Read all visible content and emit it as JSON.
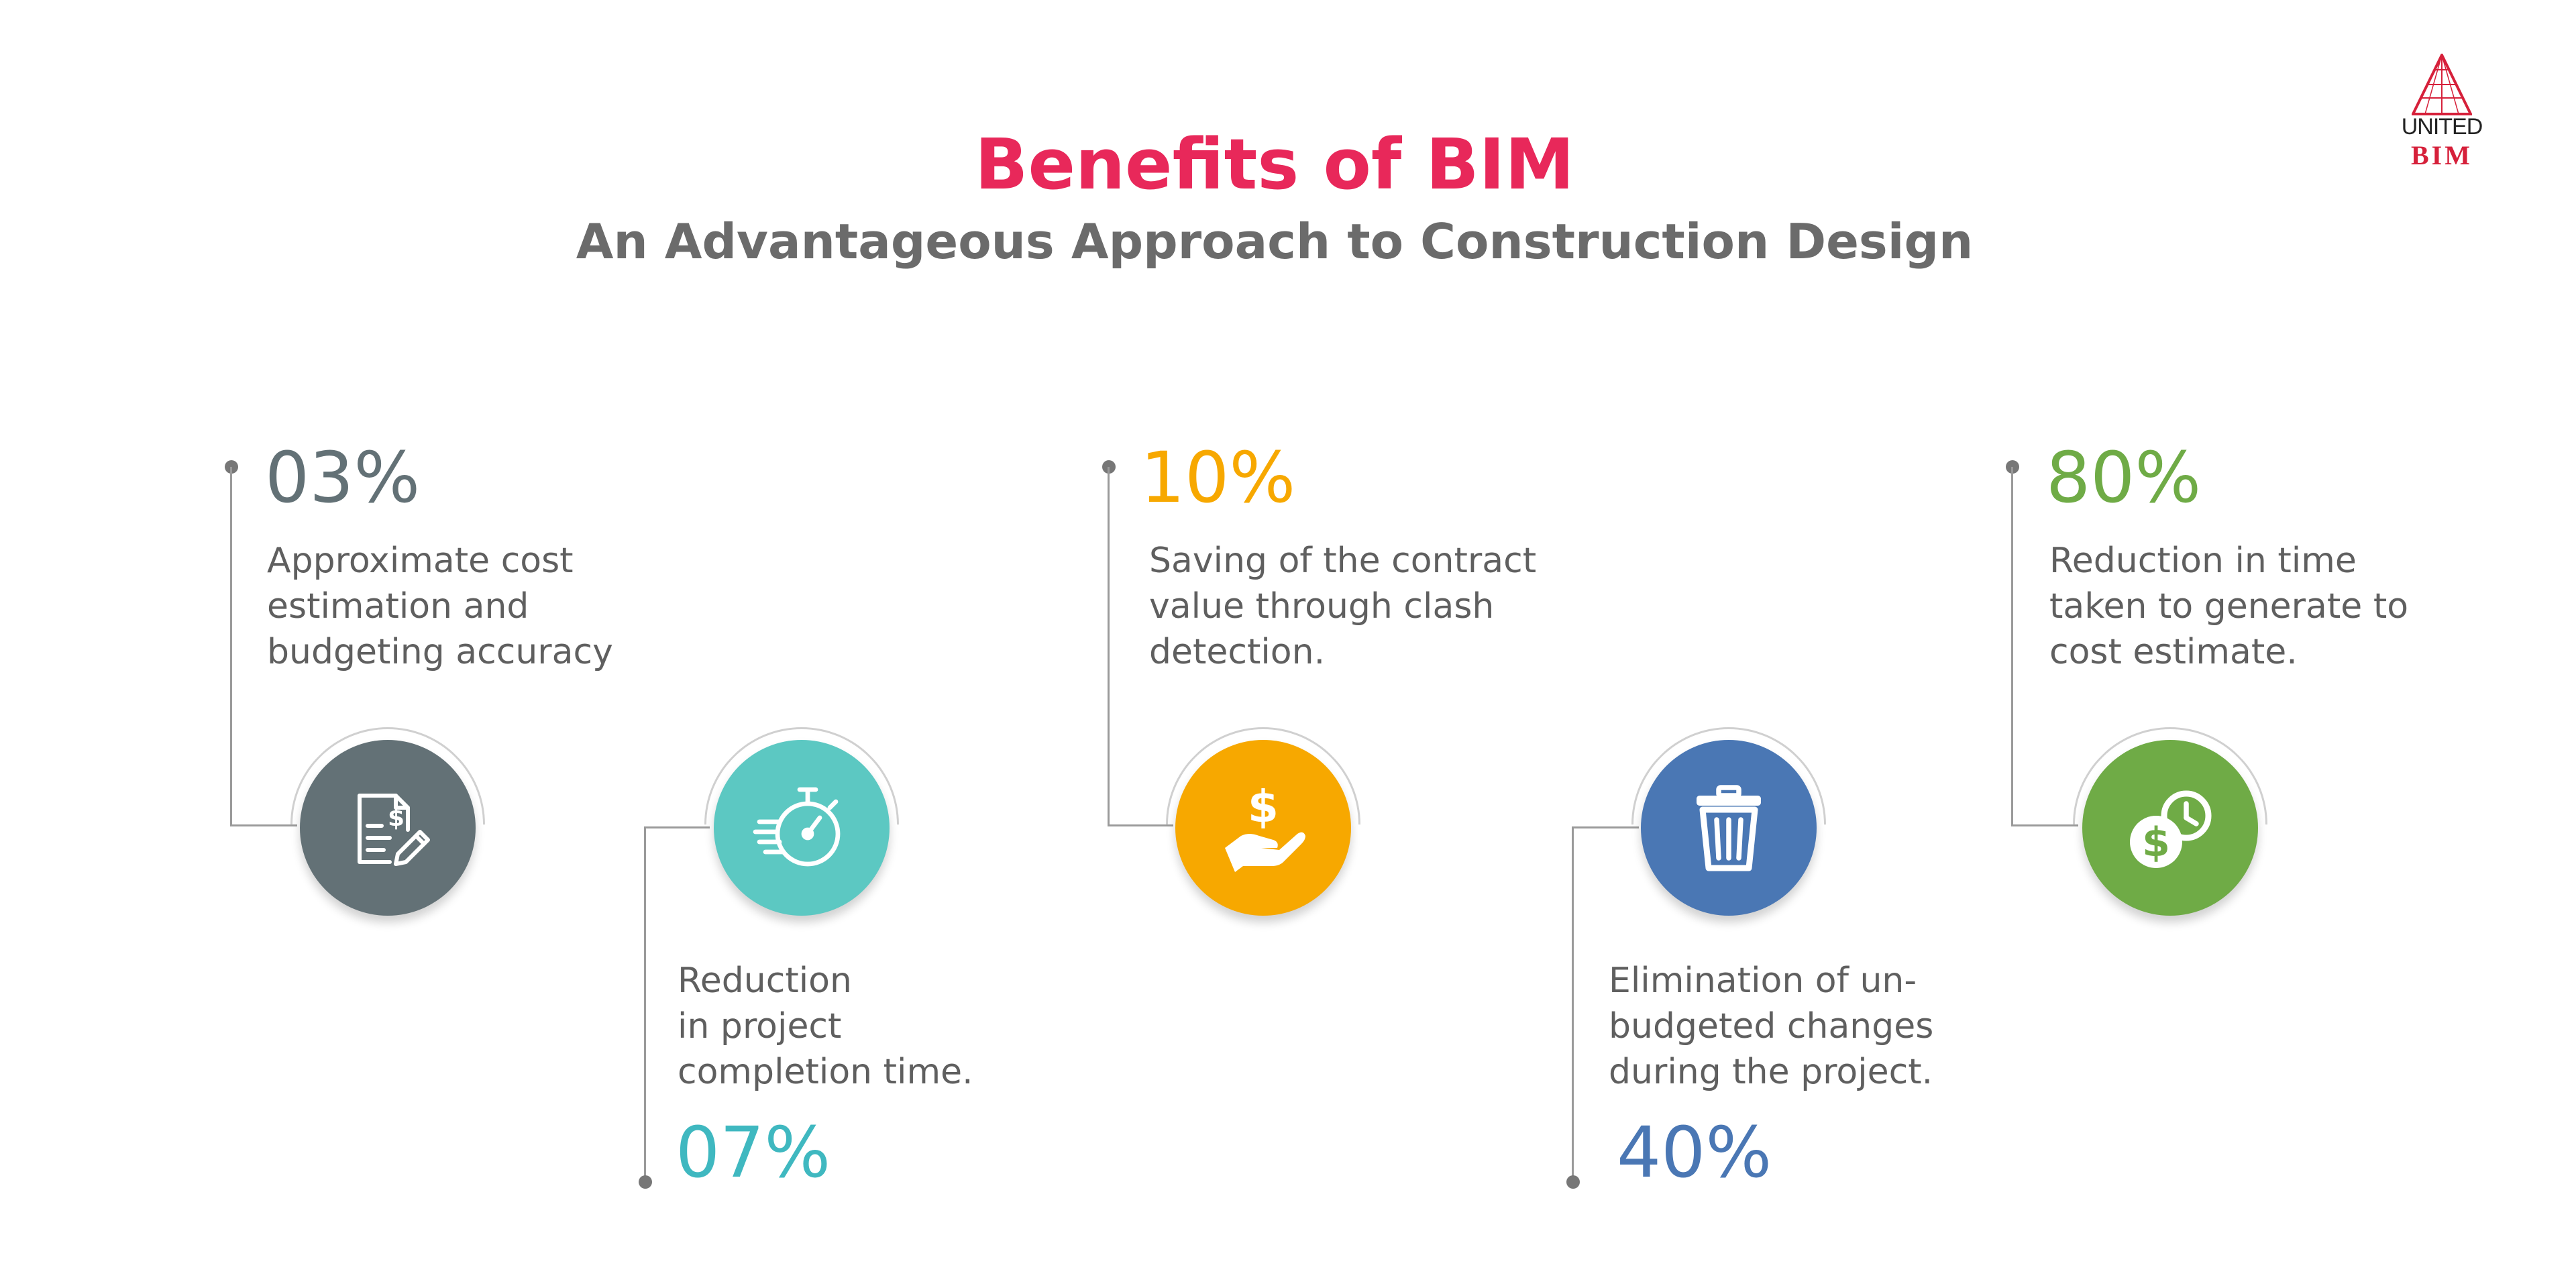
{
  "header": {
    "title": "Benefits of BIM",
    "subtitle": "An Advantageous Approach to Construction Design"
  },
  "logo": {
    "line1": "UNITED",
    "line2": "BIM"
  },
  "colors": {
    "title": "#e8285a",
    "gray": "#637176",
    "teal": "#5cc8c2",
    "orange": "#f7a800",
    "blue": "#4a77b4",
    "green": "#6fab46"
  },
  "benefits": [
    {
      "stat": "03%",
      "description": "Approximate cost\nestimation and\nbudgeting accuracy",
      "icon": "invoice-edit-icon"
    },
    {
      "stat": "07%",
      "description": "Reduction\nin project\ncompletion time.",
      "icon": "stopwatch-icon"
    },
    {
      "stat": "10%",
      "description": "Saving of the contract\nvalue through clash\ndetection.",
      "icon": "hand-dollar-icon"
    },
    {
      "stat": "40%",
      "description": "Elimination of un-\nbudgeted changes\nduring the project.",
      "icon": "trash-icon"
    },
    {
      "stat": "80%",
      "description": "Reduction in time\ntaken to generate to\ncost estimate.",
      "icon": "dollar-clock-icon"
    }
  ]
}
